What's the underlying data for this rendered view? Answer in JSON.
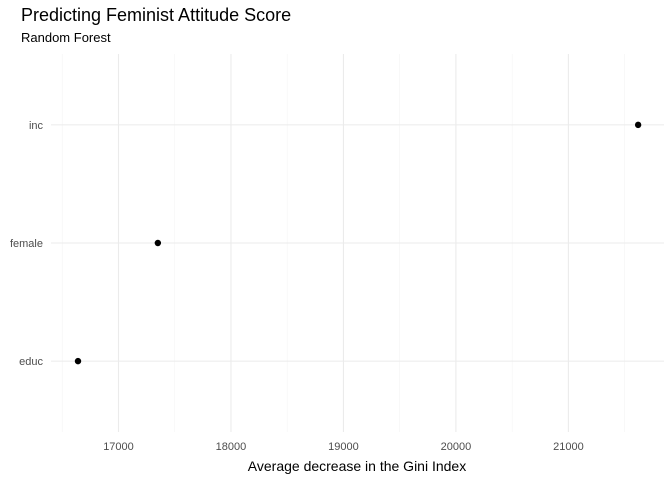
{
  "chart_data": {
    "type": "scatter",
    "title": "Predicting Feminist Attitude Score",
    "subtitle": "Random Forest",
    "xlabel": "Average decrease in the Gini Index",
    "ylabel": "",
    "categories": [
      "educ",
      "female",
      "inc"
    ],
    "values": [
      16640,
      17350,
      21620
    ],
    "xlim": [
      16400,
      21850
    ],
    "xticks": [
      17000,
      18000,
      19000,
      20000,
      21000
    ],
    "point_color": "#000000",
    "grid": true,
    "legend": "none"
  }
}
